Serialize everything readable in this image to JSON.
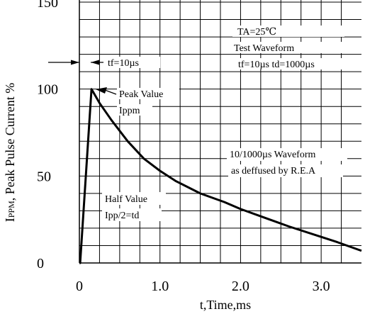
{
  "chart_data": {
    "type": "line",
    "xlabel": "t,Time,ms",
    "ylabel": "IPPM, Peak Pulse Current %",
    "ylabel_main": "I",
    "ylabel_sub": "PPM",
    "ylabel_rest": ", Peak Pulse Current %",
    "xlim": [
      0,
      3.5
    ],
    "ylim": [
      0,
      150
    ],
    "x_ticks": [
      {
        "value": 0,
        "label": "0"
      },
      {
        "value": 1.0,
        "label": "1.0"
      },
      {
        "value": 2.0,
        "label": "2.0"
      },
      {
        "value": 3.0,
        "label": "3.0"
      }
    ],
    "y_ticks": [
      {
        "value": 0,
        "label": "0"
      },
      {
        "value": 50,
        "label": "50"
      },
      {
        "value": 100,
        "label": "100"
      },
      {
        "value": 150,
        "label": "150"
      }
    ],
    "grid": true,
    "series": [
      {
        "x": [
          0,
          0.01,
          0.08,
          0.15,
          0.25,
          0.4,
          0.6,
          0.8,
          1.0,
          1.2,
          1.5,
          1.8,
          2.0,
          2.3,
          2.6,
          3.0,
          3.2,
          3.5
        ],
        "y": [
          0,
          0,
          50,
          100,
          92,
          82,
          70,
          60,
          53,
          47,
          40,
          35,
          31,
          26,
          21,
          15,
          12,
          7
        ]
      }
    ],
    "annotations": {
      "conditions": [
        "TA=25℃",
        "Test Waveform",
        "tf=10µs td=1000µs"
      ],
      "tf": "tf=10µs",
      "peak": [
        "Peak Value",
        "Ippm"
      ],
      "waveform": [
        "10/1000µs Waveform",
        "as deffused by R.E.A"
      ],
      "half": [
        "Half Value",
        "Ipp/2=td"
      ]
    }
  }
}
